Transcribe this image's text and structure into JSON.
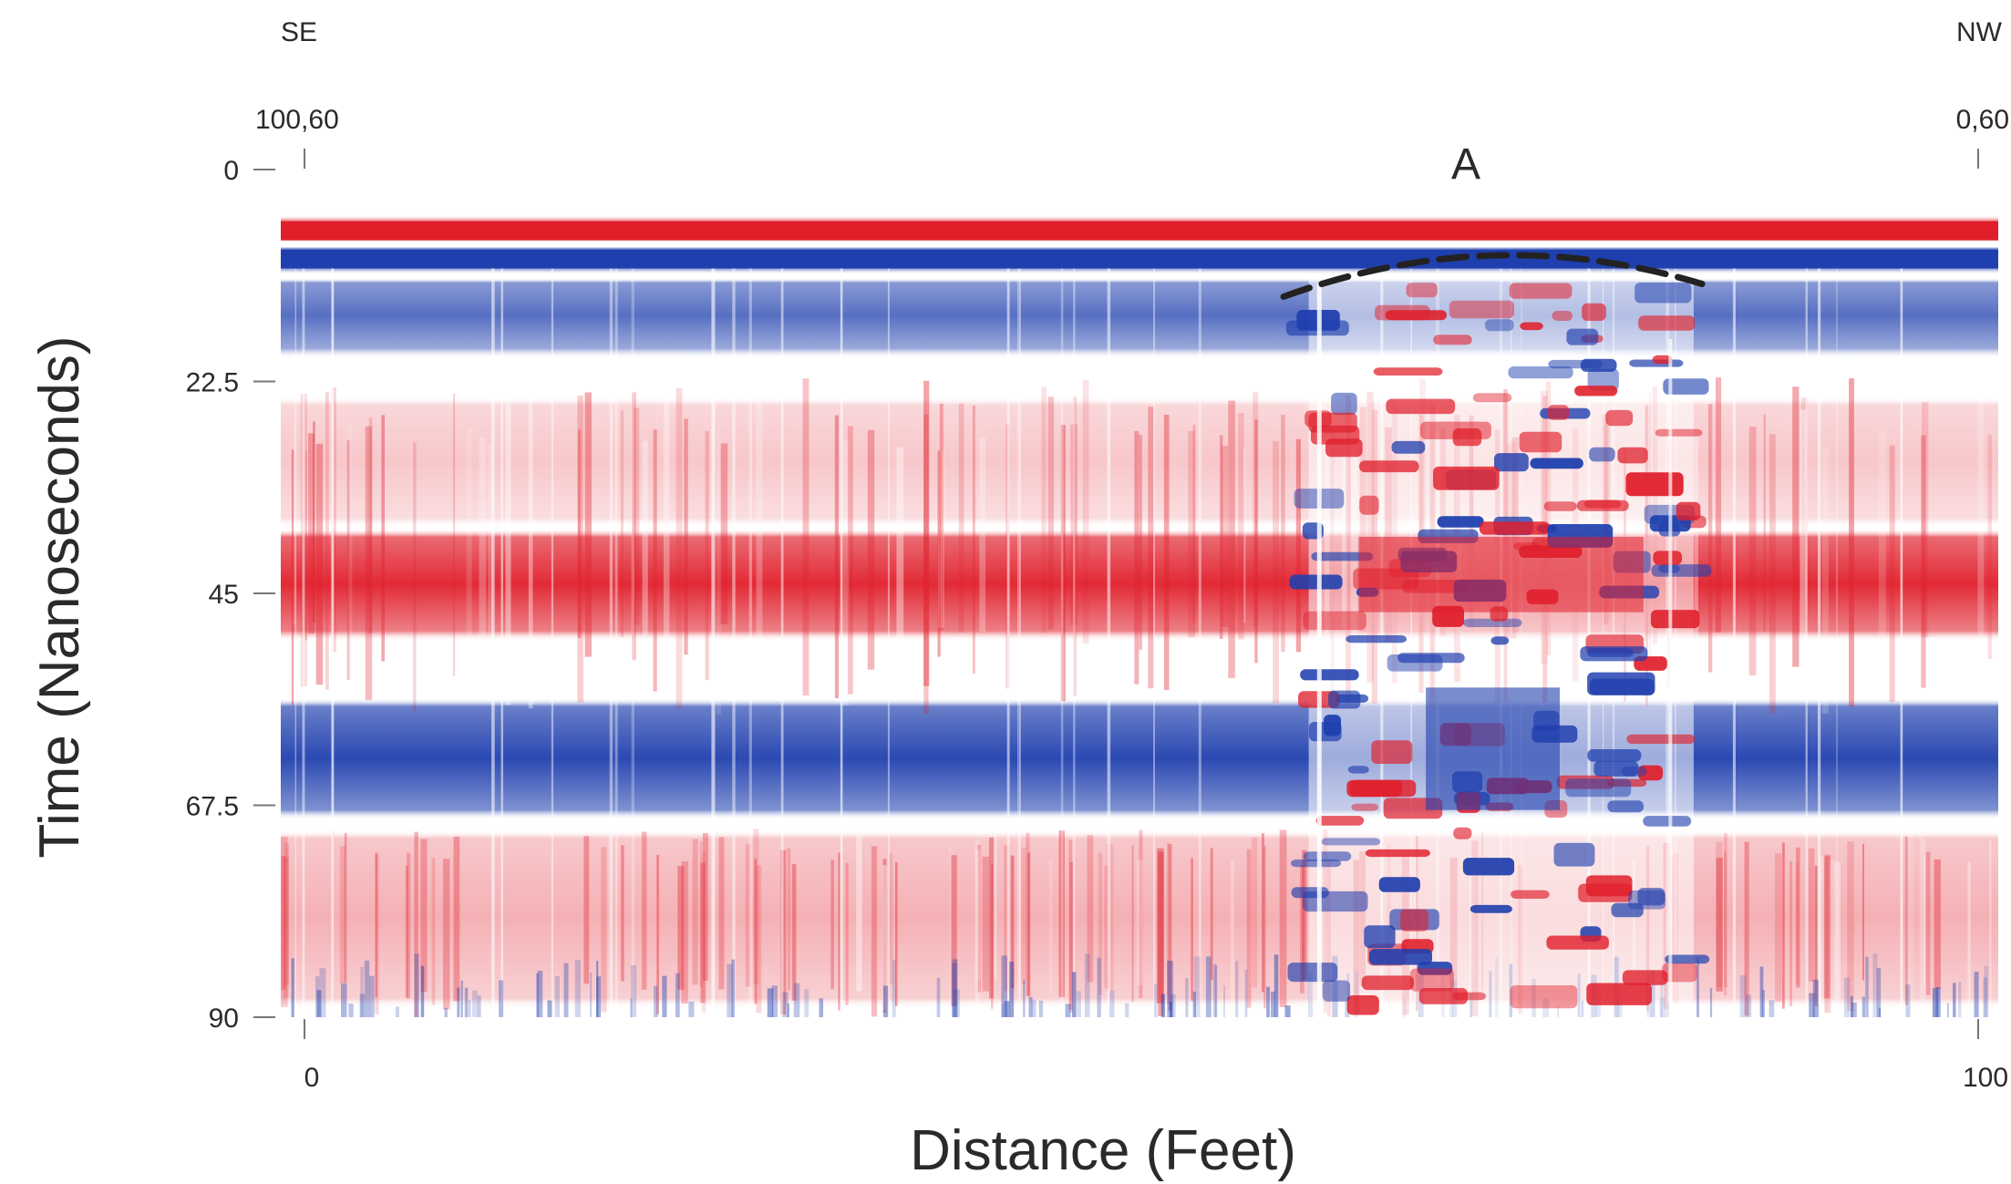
{
  "chart_data": {
    "type": "heatmap",
    "title": "",
    "xlabel": "Distance (Feet)",
    "ylabel": "Time (Nanoseconds)",
    "xlim": [
      0,
      100
    ],
    "ylim": [
      0,
      90
    ],
    "x_ticks": [
      {
        "value": 0,
        "label": "0"
      },
      {
        "value": 100,
        "label": "100"
      }
    ],
    "y_ticks": [
      {
        "value": 0,
        "label": "0"
      },
      {
        "value": 22.5,
        "label": "22.5"
      },
      {
        "value": 45,
        "label": "45"
      },
      {
        "value": 67.5,
        "label": "67.5"
      },
      {
        "value": 90,
        "label": "90"
      }
    ],
    "top_axis": {
      "left_label": "100,60",
      "right_label": "0,60"
    },
    "orientation": {
      "left": "SE",
      "right": "NW"
    },
    "annotations": [
      {
        "label": "A",
        "x": 70,
        "y": 0
      }
    ],
    "colors": {
      "positive": "#e01f2b",
      "negative": "#1f3fae",
      "zero": "#ffffff",
      "anomaly_outline": "#222222"
    },
    "bands": [
      {
        "t_start": 5.5,
        "t_end": 7.5,
        "polarity": "positive",
        "strength": 1.0
      },
      {
        "t_start": 8.5,
        "t_end": 10.5,
        "polarity": "negative",
        "strength": 1.0
      },
      {
        "t_start": 12,
        "t_end": 19,
        "polarity": "negative",
        "strength": 0.75
      },
      {
        "t_start": 25,
        "t_end": 37,
        "polarity": "positive",
        "strength": 0.25
      },
      {
        "t_start": 39,
        "t_end": 49,
        "polarity": "positive",
        "strength": 0.95
      },
      {
        "t_start": 57,
        "t_end": 68,
        "polarity": "negative",
        "strength": 0.95
      },
      {
        "t_start": 71,
        "t_end": 88,
        "polarity": "positive",
        "strength": 0.35
      }
    ],
    "anomaly": {
      "label": "A",
      "x_start": 60,
      "x_end": 83,
      "t_start": 9,
      "t_end": 90
    }
  }
}
